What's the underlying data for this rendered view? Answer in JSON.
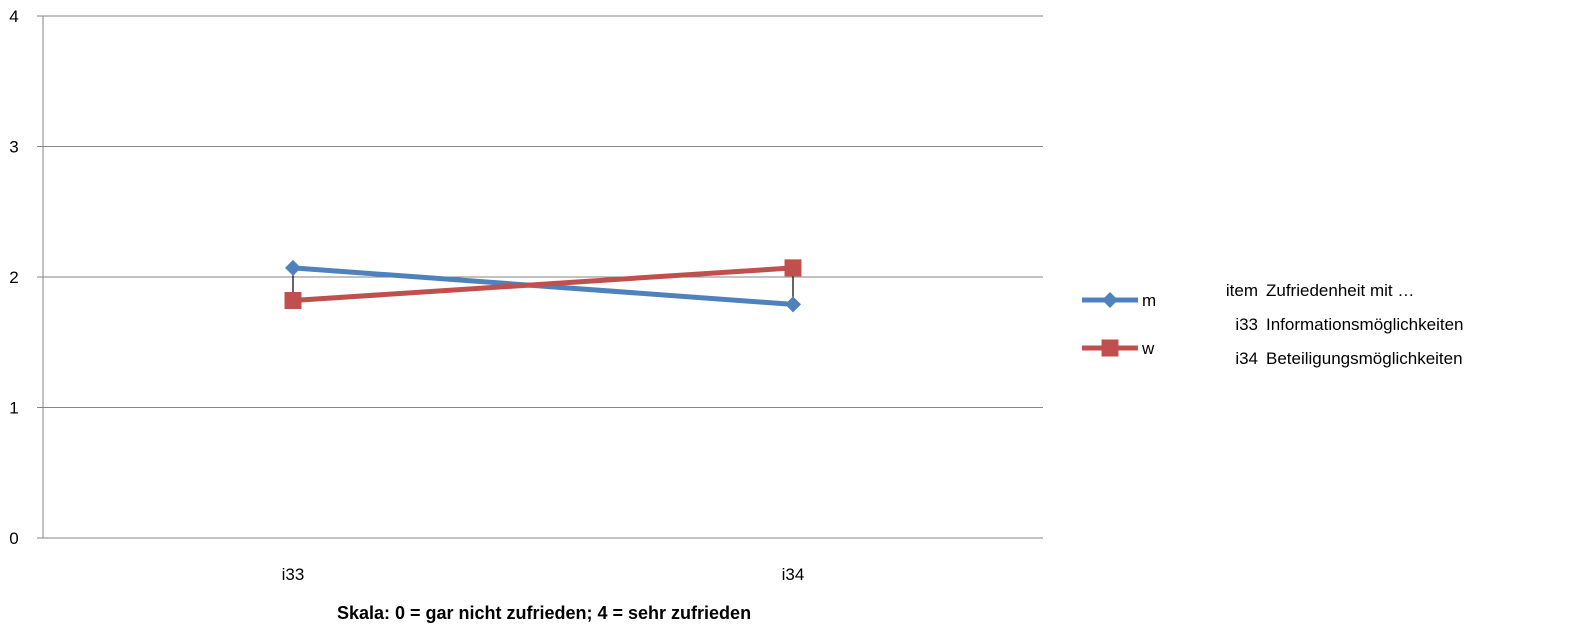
{
  "chart_data": {
    "type": "line",
    "categories": [
      "i33",
      "i34"
    ],
    "series": [
      {
        "name": "m",
        "values": [
          2.07,
          1.79
        ],
        "color": "#4F81BD",
        "marker": "diamond"
      },
      {
        "name": "w",
        "values": [
          1.82,
          2.07
        ],
        "color": "#C0504D",
        "marker": "square"
      }
    ],
    "ylim": [
      0,
      4
    ],
    "yticks": [
      "0",
      "1",
      "2",
      "3",
      "4"
    ],
    "xlabel": "Skala: 0 = gar nicht zufrieden; 4 = sehr zufrieden",
    "ylabel": "",
    "grid": true,
    "legend_position": "right",
    "difference_lines": true
  },
  "reference_table": {
    "header": {
      "code": "item",
      "desc": "Zufriedenheit mit …"
    },
    "rows": [
      {
        "code": "i33",
        "desc": "Informationsmöglichkeiten"
      },
      {
        "code": "i34",
        "desc": "Beteiligungsmöglichkeiten"
      }
    ]
  }
}
